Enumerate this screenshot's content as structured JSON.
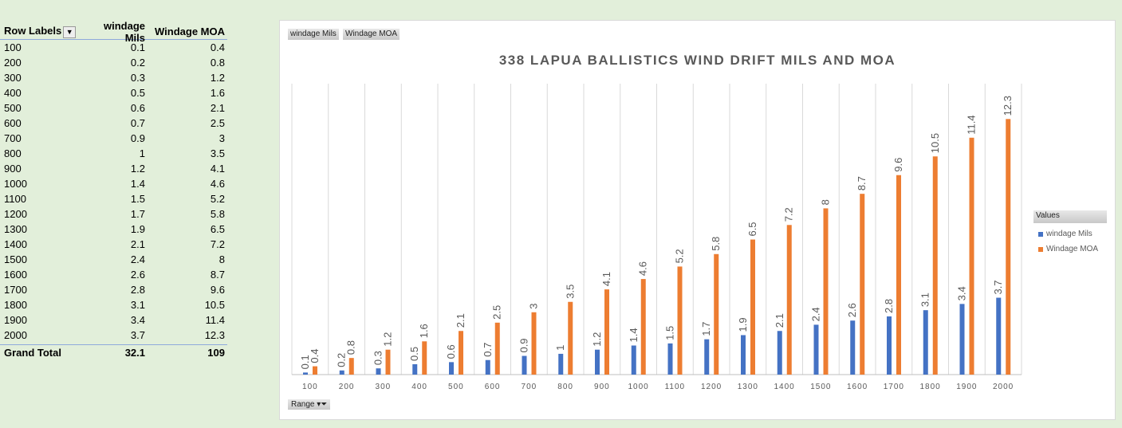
{
  "pivot": {
    "headers": [
      "Row Labels",
      "windage Mils",
      "Windage MOA"
    ],
    "rows": [
      [
        "100",
        "0.1",
        "0.4"
      ],
      [
        "200",
        "0.2",
        "0.8"
      ],
      [
        "300",
        "0.3",
        "1.2"
      ],
      [
        "400",
        "0.5",
        "1.6"
      ],
      [
        "500",
        "0.6",
        "2.1"
      ],
      [
        "600",
        "0.7",
        "2.5"
      ],
      [
        "700",
        "0.9",
        "3"
      ],
      [
        "800",
        "1",
        "3.5"
      ],
      [
        "900",
        "1.2",
        "4.1"
      ],
      [
        "1000",
        "1.4",
        "4.6"
      ],
      [
        "1100",
        "1.5",
        "5.2"
      ],
      [
        "1200",
        "1.7",
        "5.8"
      ],
      [
        "1300",
        "1.9",
        "6.5"
      ],
      [
        "1400",
        "2.1",
        "7.2"
      ],
      [
        "1500",
        "2.4",
        "8"
      ],
      [
        "1600",
        "2.6",
        "8.7"
      ],
      [
        "1700",
        "2.8",
        "9.6"
      ],
      [
        "1800",
        "3.1",
        "10.5"
      ],
      [
        "1900",
        "3.4",
        "11.4"
      ],
      [
        "2000",
        "3.7",
        "12.3"
      ]
    ],
    "total": [
      "Grand Total",
      "32.1",
      "109"
    ]
  },
  "chart_data": {
    "type": "bar",
    "title": "338 LAPUA BALLISTICS WIND DRIFT MILS AND MOA",
    "categories": [
      "100",
      "200",
      "300",
      "400",
      "500",
      "600",
      "700",
      "800",
      "900",
      "1000",
      "1100",
      "1200",
      "1300",
      "1400",
      "1500",
      "1600",
      "1700",
      "1800",
      "1900",
      "2000"
    ],
    "series": [
      {
        "name": "windage Mils",
        "color": "#4472c4",
        "values": [
          0.1,
          0.2,
          0.3,
          0.5,
          0.6,
          0.7,
          0.9,
          1,
          1.2,
          1.4,
          1.5,
          1.7,
          1.9,
          2.1,
          2.4,
          2.6,
          2.8,
          3.1,
          3.4,
          3.7
        ]
      },
      {
        "name": "Windage MOA",
        "color": "#ed7d31",
        "values": [
          0.4,
          0.8,
          1.2,
          1.6,
          2.1,
          2.5,
          3,
          3.5,
          4.1,
          4.6,
          5.2,
          5.8,
          6.5,
          7.2,
          8,
          8.7,
          9.6,
          10.5,
          11.4,
          12.3
        ]
      }
    ],
    "ylim": [
      0,
      14
    ],
    "grid": "vertical",
    "legend": {
      "title": "Values",
      "placement": "right"
    },
    "field_buttons": [
      "windage Mils",
      "Windage MOA"
    ],
    "axis_field_button": "Range"
  }
}
